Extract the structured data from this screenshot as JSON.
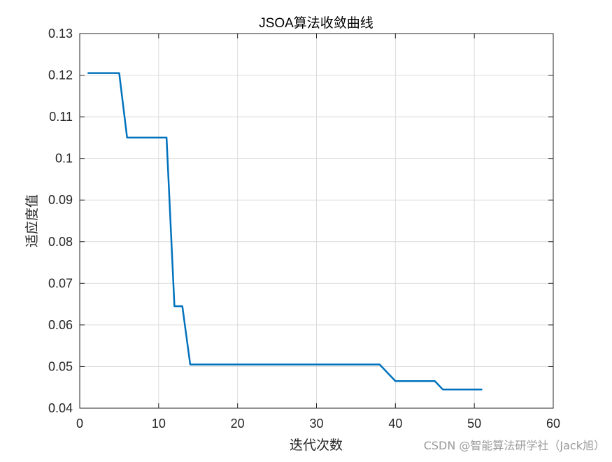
{
  "chart_data": {
    "type": "line",
    "title": "JSOA算法收敛曲线",
    "xlabel": "迭代次数",
    "ylabel": "适应度值",
    "xlim": [
      0,
      60
    ],
    "ylim": [
      0.04,
      0.13
    ],
    "xticks": [
      0,
      10,
      20,
      30,
      40,
      50,
      60
    ],
    "yticks": [
      0.04,
      0.05,
      0.06,
      0.07,
      0.08,
      0.09,
      0.1,
      0.11,
      0.12,
      0.13
    ],
    "xtick_labels": [
      "0",
      "10",
      "20",
      "30",
      "40",
      "50",
      "60"
    ],
    "ytick_labels": [
      "0.04",
      "0.05",
      "0.06",
      "0.07",
      "0.08",
      "0.09",
      "0.1",
      "0.11",
      "0.12",
      "0.13"
    ],
    "grid": true,
    "series": [
      {
        "color": "#0072BD",
        "x": [
          1,
          2,
          3,
          4,
          5,
          6,
          7,
          8,
          9,
          10,
          11,
          12,
          13,
          14,
          15,
          16,
          17,
          18,
          19,
          20,
          21,
          22,
          23,
          24,
          25,
          26,
          27,
          28,
          29,
          30,
          31,
          32,
          33,
          34,
          35,
          36,
          37,
          38,
          39,
          40,
          41,
          42,
          43,
          44,
          45,
          46,
          47,
          48,
          49,
          50,
          51
        ],
        "y": [
          0.1205,
          0.1205,
          0.1205,
          0.1205,
          0.1205,
          0.105,
          0.105,
          0.105,
          0.105,
          0.105,
          0.105,
          0.0645,
          0.0645,
          0.0505,
          0.0505,
          0.0505,
          0.0505,
          0.0505,
          0.0505,
          0.0505,
          0.0505,
          0.0505,
          0.0505,
          0.0505,
          0.0505,
          0.0505,
          0.0505,
          0.0505,
          0.0505,
          0.0505,
          0.0505,
          0.0505,
          0.0505,
          0.0505,
          0.0505,
          0.0505,
          0.0505,
          0.0505,
          0.0485,
          0.0465,
          0.0465,
          0.0465,
          0.0465,
          0.0465,
          0.0465,
          0.0445,
          0.0445,
          0.0445,
          0.0445,
          0.0445,
          0.0445
        ]
      }
    ]
  },
  "watermark": "CSDN @智能算法研学社（Jack旭）"
}
